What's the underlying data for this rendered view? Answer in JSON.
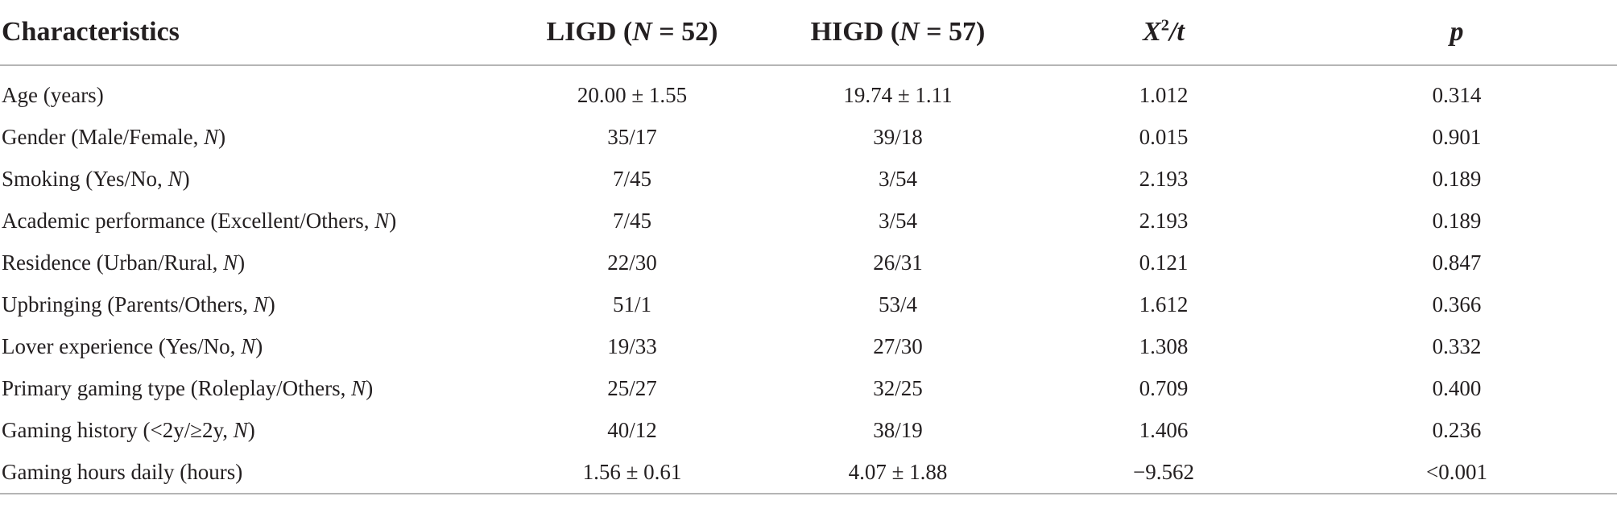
{
  "table": {
    "headers": {
      "characteristics": "Characteristics",
      "ligd_prefix": "LIGD (",
      "ligd_n": "N",
      "ligd_suffix": " = 52)",
      "higd_prefix": "HIGD (",
      "higd_n": "N",
      "higd_suffix": " = 57)",
      "stat_x": "X",
      "stat_sup": "2",
      "stat_t": "/t",
      "p": "p"
    },
    "rows": [
      {
        "label": "Age (years)",
        "label_italic": "",
        "label_close": "",
        "ligd": "20.00 ± 1.55",
        "higd": "19.74 ± 1.11",
        "stat": "1.012",
        "p": "0.314"
      },
      {
        "label": "Gender (Male/Female, ",
        "label_italic": "N",
        "label_close": ")",
        "ligd": "35/17",
        "higd": "39/18",
        "stat": "0.015",
        "p": "0.901"
      },
      {
        "label": "Smoking (Yes/No, ",
        "label_italic": "N",
        "label_close": ")",
        "ligd": "7/45",
        "higd": "3/54",
        "stat": "2.193",
        "p": "0.189"
      },
      {
        "label": "Academic performance (Excellent/Others, ",
        "label_italic": "N",
        "label_close": ")",
        "ligd": "7/45",
        "higd": "3/54",
        "stat": "2.193",
        "p": "0.189"
      },
      {
        "label": "Residence (Urban/Rural, ",
        "label_italic": "N",
        "label_close": ")",
        "ligd": "22/30",
        "higd": "26/31",
        "stat": "0.121",
        "p": "0.847"
      },
      {
        "label": "Upbringing (Parents/Others, ",
        "label_italic": "N",
        "label_close": ")",
        "ligd": "51/1",
        "higd": "53/4",
        "stat": "1.612",
        "p": "0.366"
      },
      {
        "label": "Lover experience (Yes/No, ",
        "label_italic": "N",
        "label_close": ")",
        "ligd": "19/33",
        "higd": "27/30",
        "stat": "1.308",
        "p": "0.332"
      },
      {
        "label": "Primary gaming type (Roleplay/Others, ",
        "label_italic": "N",
        "label_close": ")",
        "ligd": "25/27",
        "higd": "32/25",
        "stat": "0.709",
        "p": "0.400"
      },
      {
        "label": "Gaming history (<2y/≥2y, ",
        "label_italic": "N",
        "label_close": ")",
        "ligd": "40/12",
        "higd": "38/19",
        "stat": "1.406",
        "p": "0.236"
      },
      {
        "label": "Gaming hours daily (hours)",
        "label_italic": "",
        "label_close": "",
        "ligd": "1.56 ± 0.61",
        "higd": "4.07 ± 1.88",
        "stat": "−9.562",
        "p": "<0.001"
      }
    ]
  }
}
